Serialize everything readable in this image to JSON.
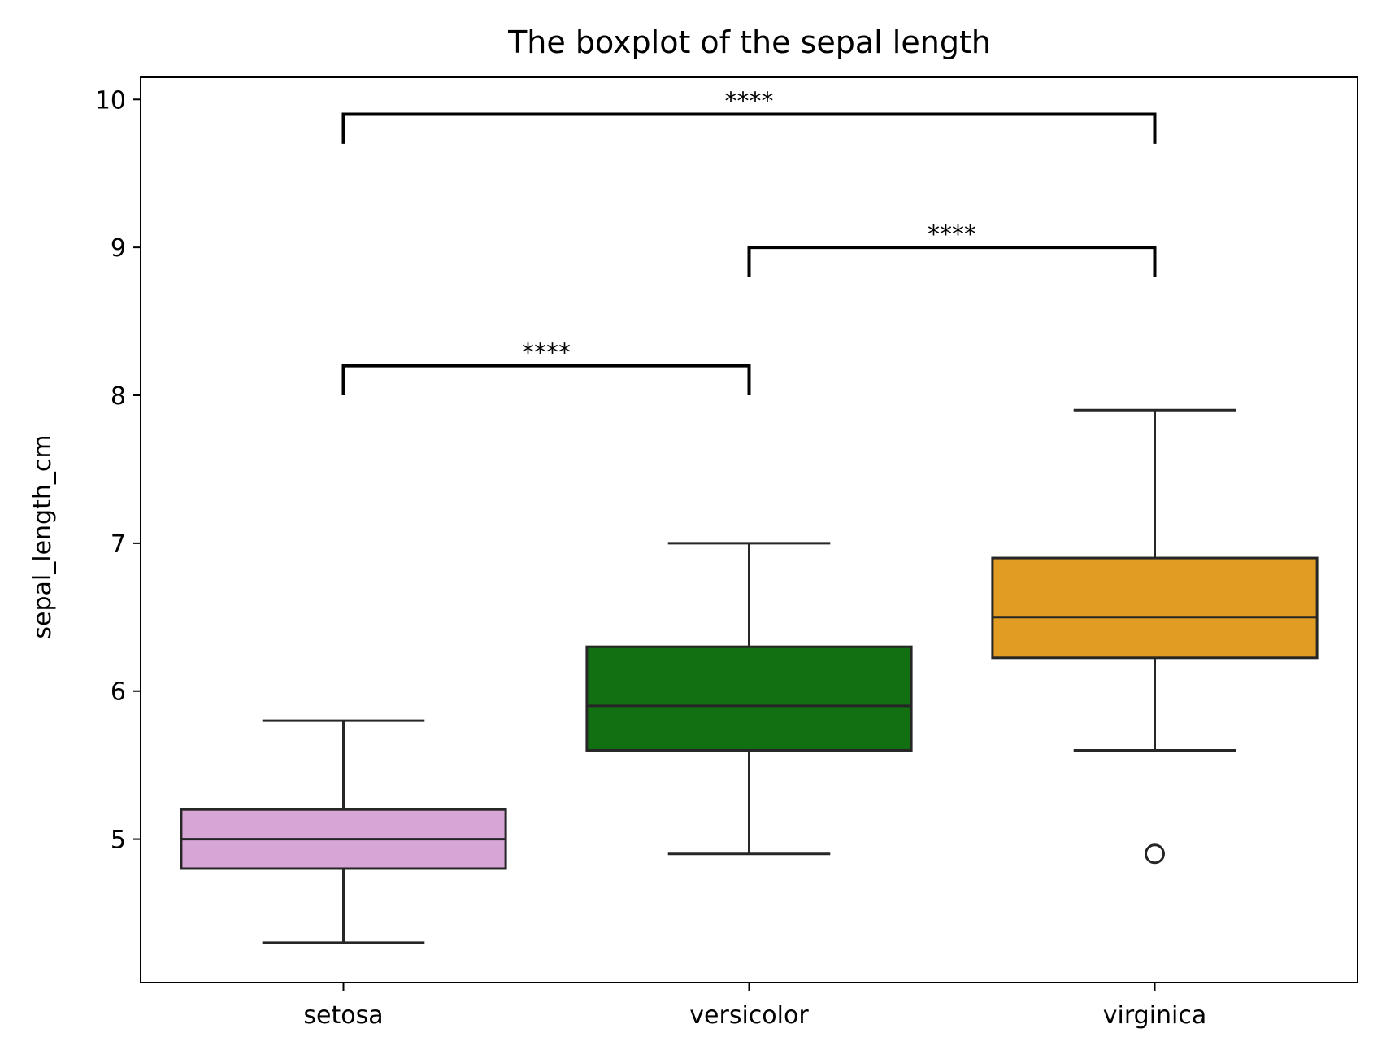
{
  "chart_data": {
    "type": "box",
    "title": "The boxplot of the sepal length",
    "xlabel": "",
    "ylabel": "sepal_length_cm",
    "ylim": [
      4.03,
      10.15
    ],
    "yticks": [
      5,
      6,
      7,
      8,
      9,
      10
    ],
    "grid": false,
    "categories": [
      "setosa",
      "versicolor",
      "virginica"
    ],
    "boxes": [
      {
        "category": "setosa",
        "whisker_low": 4.3,
        "q1": 4.8,
        "median": 5.0,
        "q3": 5.2,
        "whisker_high": 5.8,
        "outliers": [],
        "color": "#D7A6D6"
      },
      {
        "category": "versicolor",
        "whisker_low": 4.9,
        "q1": 5.6,
        "median": 5.9,
        "q3": 6.3,
        "whisker_high": 7.0,
        "outliers": [],
        "color": "#127012"
      },
      {
        "category": "virginica",
        "whisker_low": 5.6,
        "q1": 6.225,
        "median": 6.5,
        "q3": 6.9,
        "whisker_high": 7.9,
        "outliers": [
          4.9
        ],
        "color": "#E09C23"
      }
    ],
    "significance": [
      {
        "from": "setosa",
        "to": "versicolor",
        "level": 8.2,
        "label": "****"
      },
      {
        "from": "versicolor",
        "to": "virginica",
        "level": 9.0,
        "label": "****"
      },
      {
        "from": "setosa",
        "to": "virginica",
        "level": 9.9,
        "label": "****"
      }
    ]
  }
}
